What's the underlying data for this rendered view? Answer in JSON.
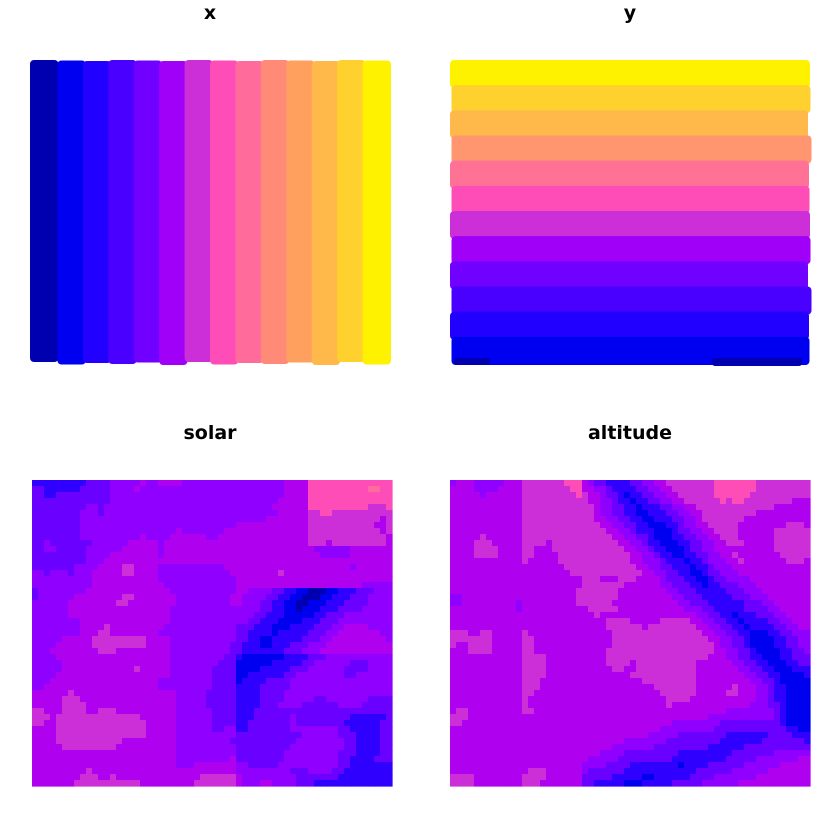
{
  "palette": [
    "#0000b0",
    "#0000f0",
    "#2b00ff",
    "#5600ff",
    "#8a00ff",
    "#b000f0",
    "#cc2ed8",
    "#ff4db7",
    "#ff6b9a",
    "#ff8a78",
    "#ffa05e",
    "#ffb84a",
    "#ffd12e",
    "#fff200"
  ],
  "chart_data": [
    {
      "type": "heatmap",
      "title": "x",
      "xlabel": "",
      "ylabel": "",
      "legend": "none",
      "grid": false,
      "pattern": "horizontal gradient",
      "levels": 14
    },
    {
      "type": "heatmap",
      "title": "y",
      "xlabel": "",
      "ylabel": "",
      "legend": "none",
      "grid": false,
      "pattern": "vertical gradient (high at top)",
      "levels": 12
    },
    {
      "type": "heatmap",
      "title": "solar",
      "xlabel": "",
      "ylabel": "",
      "legend": "none",
      "grid": false,
      "pattern": "spatial raster, mostly magenta/purple with blue ridge in lower right"
    },
    {
      "type": "heatmap",
      "title": "altitude",
      "xlabel": "",
      "ylabel": "",
      "legend": "none",
      "grid": false,
      "pattern": "spatial raster, magenta/purple with diagonal blue valley from upper center to lower right"
    }
  ]
}
